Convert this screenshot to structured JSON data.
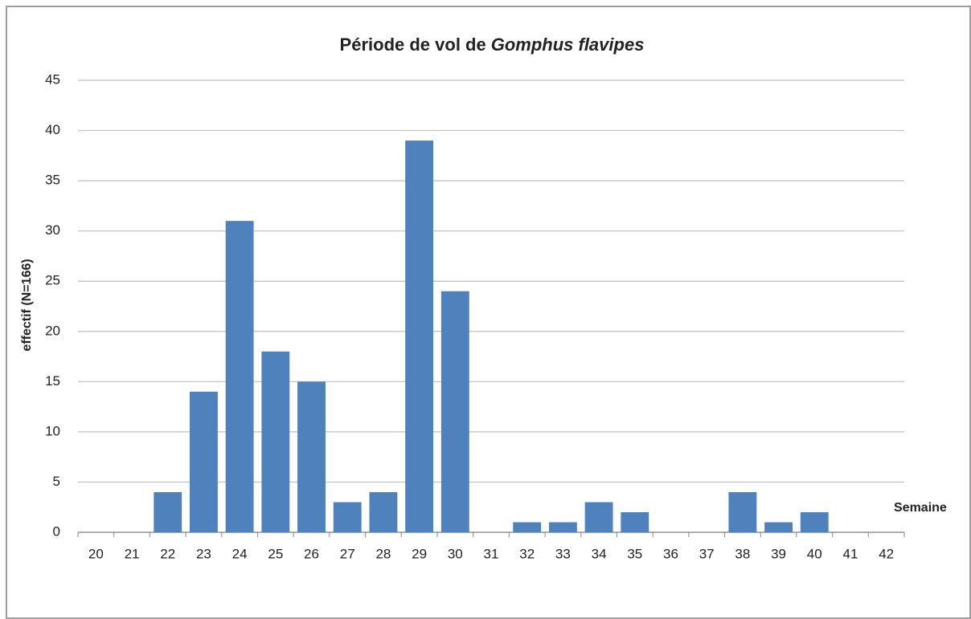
{
  "chart_data": {
    "type": "bar",
    "title": [
      "Période de vol de",
      "Gomphus flavipes"
    ],
    "ylabel": "effectif (N=166)",
    "xlabel": "Semaine",
    "categories": [
      "20",
      "21",
      "22",
      "23",
      "24",
      "25",
      "26",
      "27",
      "28",
      "29",
      "30",
      "31",
      "32",
      "33",
      "34",
      "35",
      "36",
      "37",
      "38",
      "39",
      "40",
      "41",
      "42"
    ],
    "values": [
      0,
      0,
      4,
      14,
      31,
      18,
      15,
      3,
      4,
      39,
      24,
      0,
      1,
      1,
      3,
      2,
      0,
      0,
      4,
      1,
      2,
      0,
      0
    ],
    "color": "#4f81bd",
    "ylim": [
      0,
      45
    ],
    "yticks": [
      0,
      5,
      10,
      15,
      20,
      25,
      30,
      35,
      40,
      45
    ],
    "grid": true
  }
}
